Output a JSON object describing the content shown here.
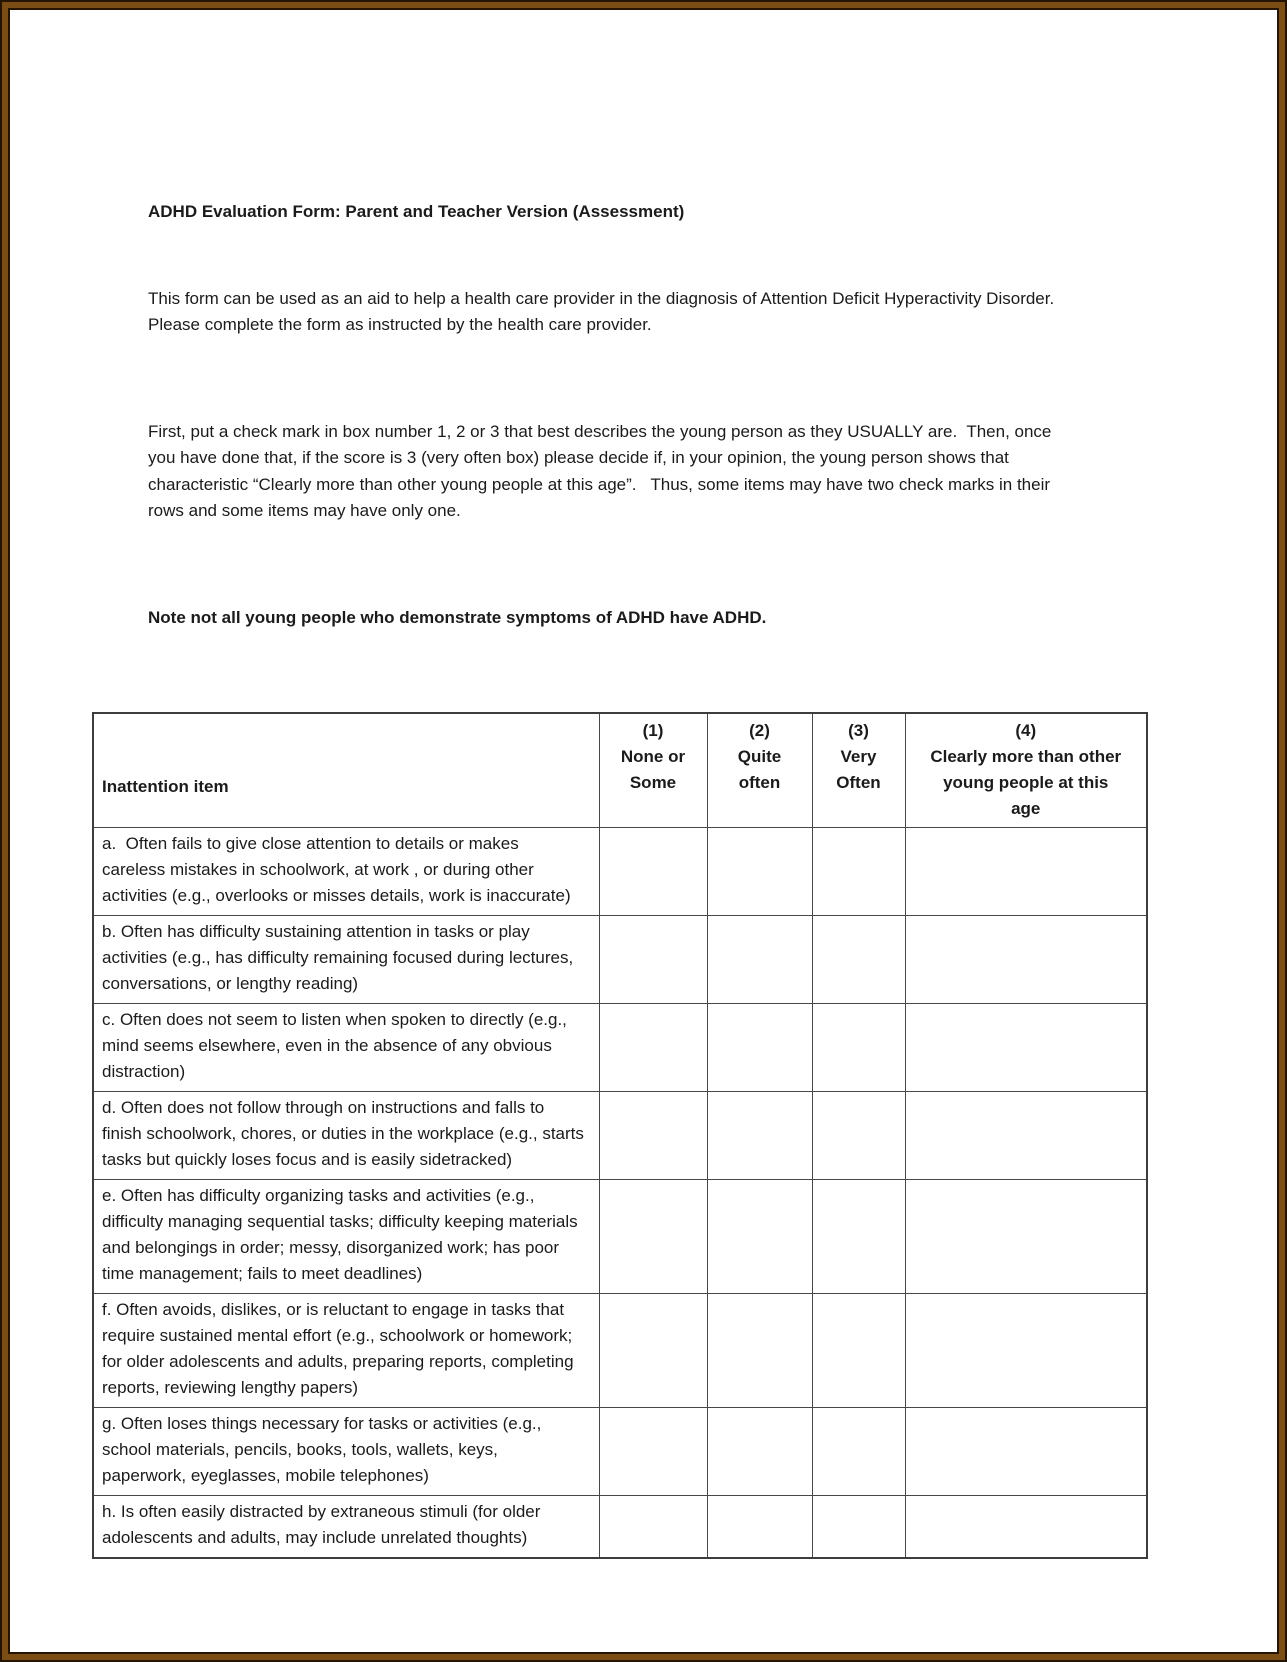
{
  "document": {
    "title": "ADHD Evaluation Form: Parent and Teacher Version (Assessment)",
    "intro": "This form can be used as an aid to help a health care provider in the diagnosis of Attention Deficit Hyperactivity Disorder.  Please complete the form as instructed by the health care provider.",
    "instructions": "First, put a check mark in box number 1, 2 or 3 that best describes the young person as they USUALLY are.  Then, once you have done that, if the score is 3 (very often box) please decide if, in your opinion, the young person shows that characteristic “Clearly more than other young people at this age”.   Thus, some items may have two check marks in their rows and some items may have only one.",
    "note": "Note not all young people who demonstrate symptoms of ADHD have ADHD."
  },
  "table": {
    "item_header": "Inattention item",
    "columns": [
      {
        "number": "(1)",
        "label": "None or\nSome"
      },
      {
        "number": "(2)",
        "label": "Quite\noften"
      },
      {
        "number": "(3)",
        "label": "Very\nOften"
      },
      {
        "number": "(4)",
        "label": "Clearly more than other\nyoung people at this\nage"
      }
    ],
    "rows": [
      {
        "item": "a.  Often fails to give close attention to details or makes careless mistakes in schoolwork, at work , or during other activities (e.g., overlooks or misses details, work is inaccurate)",
        "answers": [
          "",
          "",
          "",
          ""
        ]
      },
      {
        "item": "b. Often has difficulty sustaining attention in tasks or play activities (e.g., has difficulty remaining focused during lectures, conversations, or lengthy reading)",
        "answers": [
          "",
          "",
          "",
          ""
        ]
      },
      {
        "item": "c. Often does not seem to listen when spoken to directly (e.g., mind seems elsewhere, even in the absence of any obvious distraction)",
        "answers": [
          "",
          "",
          "",
          ""
        ]
      },
      {
        "item": "d. Often does not follow through on instructions and falls to finish schoolwork, chores, or duties in the workplace (e.g., starts tasks but quickly loses focus and is easily sidetracked)",
        "answers": [
          "",
          "",
          "",
          ""
        ]
      },
      {
        "item": "e. Often has difficulty organizing tasks and activities (e.g., difficulty managing sequential tasks; difficulty keeping materials and belongings in order; messy, disorganized work; has poor time management; fails to meet deadlines)",
        "answers": [
          "",
          "",
          "",
          ""
        ]
      },
      {
        "item": "f. Often avoids, dislikes, or is reluctant to engage in tasks that require sustained mental effort (e.g., schoolwork or homework; for older adolescents and adults, preparing reports, completing reports, reviewing lengthy papers)",
        "answers": [
          "",
          "",
          "",
          ""
        ]
      },
      {
        "item": "g. Often loses things necessary for tasks or activities (e.g., school materials, pencils, books, tools, wallets, keys, paperwork, eyeglasses, mobile telephones)",
        "answers": [
          "",
          "",
          "",
          ""
        ]
      },
      {
        "item": "h. Is often easily distracted by extraneous stimuli (for older adolescents and adults, may include unrelated thoughts)",
        "answers": [
          "",
          "",
          "",
          ""
        ]
      }
    ]
  },
  "colors": {
    "frame_brown": "#7a4e15",
    "frame_dark_line": "#261403",
    "grid_line": "#474747",
    "text": "#1b1b1b",
    "page_background": "#ffffff"
  }
}
